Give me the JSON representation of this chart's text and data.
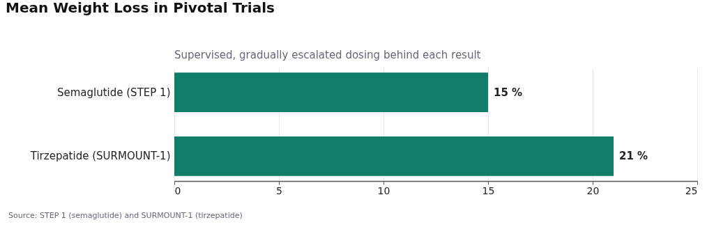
{
  "chart_data": {
    "type": "bar",
    "orientation": "horizontal",
    "title": "Mean Weight Loss in Pivotal Trials",
    "subtitle": "Supervised, gradually escalated dosing behind each result",
    "categories": [
      "Semaglutide (STEP 1)",
      "Tirzepatide (SURMOUNT-1)"
    ],
    "values": [
      15,
      21
    ],
    "value_labels": [
      "15 %",
      "21 %"
    ],
    "color": "#117d69",
    "xlim": [
      0,
      25
    ],
    "xticks": [
      0,
      5,
      10,
      15,
      20,
      25
    ],
    "grid": "x",
    "annotations": [
      "Source: STEP 1 (semaglutide) and SURMOUNT-1 (tirzepatide)"
    ]
  }
}
